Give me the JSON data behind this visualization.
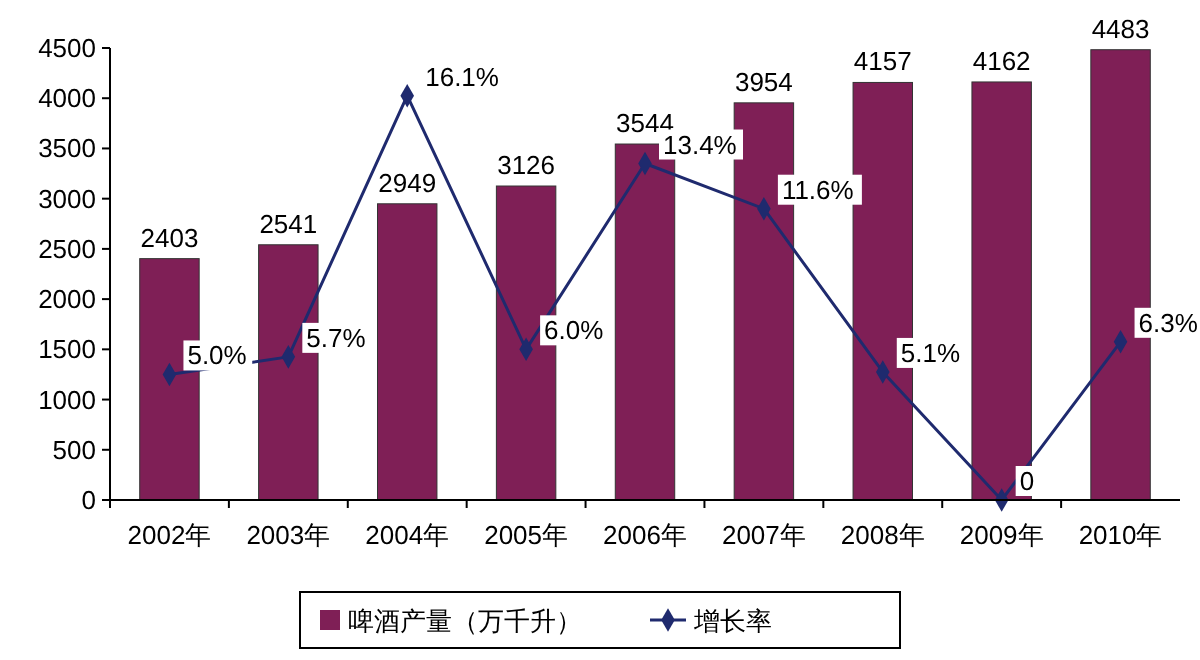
{
  "chart_data": {
    "type": "bar",
    "categories": [
      "2002年",
      "2003年",
      "2004年",
      "2005年",
      "2006年",
      "2007年",
      "2008年",
      "2009年",
      "2010年"
    ],
    "series": [
      {
        "name": "啤酒产量（万千升）",
        "color": "#7f1f56",
        "values": [
          2403,
          2541,
          2949,
          3126,
          3544,
          3954,
          4157,
          4162,
          4483
        ]
      },
      {
        "name": "增长率",
        "type": "line",
        "axis": "y2",
        "color": "#1f2a6e",
        "values": [
          5.0,
          5.7,
          16.1,
          6.0,
          13.4,
          11.6,
          5.1,
          0,
          6.3
        ],
        "value_labels": [
          "5.0%",
          "5.7%",
          "16.1%",
          "6.0%",
          "13.4%",
          "11.6%",
          "5.1%",
          "0",
          "6.3%"
        ]
      }
    ],
    "ylim": [
      0,
      4500
    ],
    "yticks": [
      0,
      500,
      1000,
      1500,
      2000,
      2500,
      3000,
      3500,
      4000,
      4500
    ],
    "y2lim": [
      0,
      18
    ],
    "data_labels": true,
    "marker": "diamond",
    "legend": "bottom",
    "grid": false
  }
}
